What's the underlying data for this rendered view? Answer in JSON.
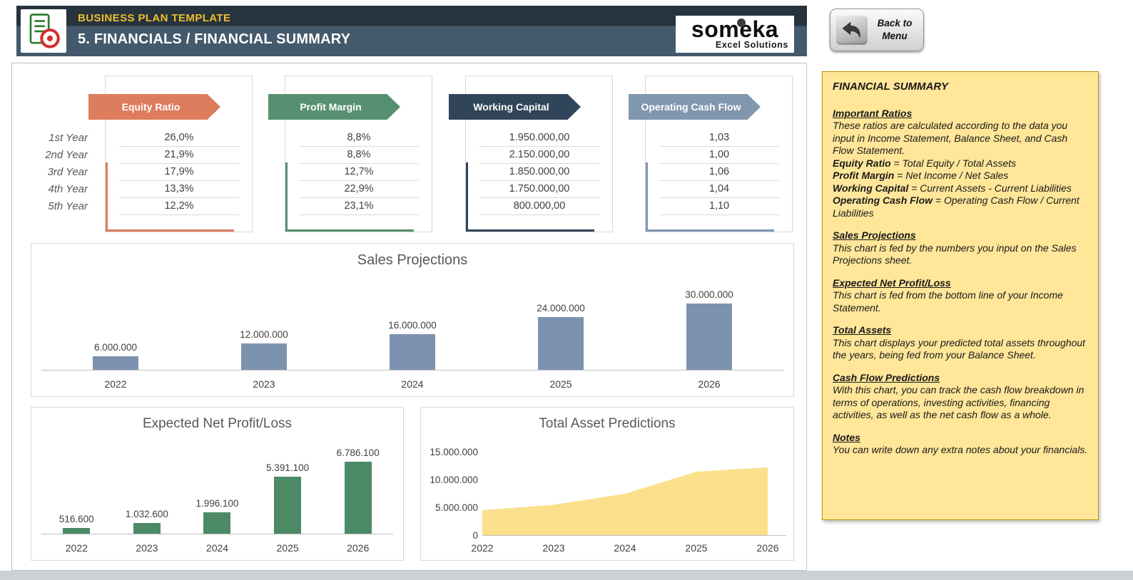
{
  "header": {
    "template_title": "BUSINESS PLAN TEMPLATE",
    "page_title": "5. FINANCIALS / FINANCIAL SUMMARY",
    "logo_text": "someka",
    "logo_subtext": "Excel Solutions",
    "back_button": {
      "line1": "Back to",
      "line2": "Menu"
    },
    "colors": {
      "band_top": "#27333D",
      "band_bottom": "#44596B",
      "accent_gold": "#EFBE2E"
    }
  },
  "kpi": {
    "row_labels": [
      "1st Year",
      "2nd Year",
      "3rd Year",
      "4th Year",
      "5th Year"
    ],
    "cards": [
      {
        "title": "Equity Ratio",
        "color": "#DD7D5E",
        "values": [
          "26,0%",
          "21,9%",
          "17,9%",
          "13,3%",
          "12,2%"
        ]
      },
      {
        "title": "Profit Margin",
        "color": "#579070",
        "values": [
          "8,8%",
          "8,8%",
          "12,7%",
          "22,9%",
          "23,1%"
        ]
      },
      {
        "title": "Working Capital",
        "color": "#31455A",
        "values": [
          "1.950.000,00",
          "2.150.000,00",
          "1.850.000,00",
          "1.750.000,00",
          "800.000,00"
        ]
      },
      {
        "title": "Operating Cash Flow",
        "color": "#8097AE",
        "values": [
          "1,03",
          "1,00",
          "1,06",
          "1,04",
          "1,10"
        ]
      }
    ]
  },
  "chart_data": [
    {
      "type": "bar",
      "title": "Sales Projections",
      "categories": [
        "2022",
        "2023",
        "2024",
        "2025",
        "2026"
      ],
      "values": [
        6000000,
        12000000,
        16000000,
        24000000,
        30000000
      ],
      "value_labels": [
        "6.000.000",
        "12.000.000",
        "16.000.000",
        "24.000.000",
        "30.000.000"
      ],
      "bar_color": "#7C93B0",
      "ylim": [
        0,
        30000000
      ],
      "grid": false,
      "legend": "none"
    },
    {
      "type": "bar",
      "title": "Expected Net Profit/Loss",
      "categories": [
        "2022",
        "2023",
        "2024",
        "2025",
        "2026"
      ],
      "values": [
        516600,
        1032600,
        1996100,
        5391100,
        6786100
      ],
      "value_labels": [
        "516.600",
        "1.032.600",
        "1.996.100",
        "5.391.100",
        "6.786.100"
      ],
      "bar_color": "#4C8A66",
      "ylim": [
        0,
        6786100
      ],
      "grid": false,
      "legend": "none"
    },
    {
      "type": "area",
      "title": "Total Asset Predictions",
      "categories": [
        "2022",
        "2023",
        "2024",
        "2025",
        "2026"
      ],
      "values": [
        4500000,
        5500000,
        7500000,
        11500000,
        12300000
      ],
      "area_color": "#FBE08C",
      "ylim": [
        0,
        15000000
      ],
      "yticks": [
        "15.000.000",
        "10.000.000",
        "5.000.000",
        "0"
      ],
      "ytick_values": [
        15000000,
        10000000,
        5000000,
        0
      ],
      "grid": false,
      "legend": "none"
    }
  ],
  "sidebar": {
    "title": "FINANCIAL SUMMARY",
    "ratios": {
      "header": "Important Ratios",
      "body": "These ratios are calculated according to the data you input in Income Statement, Balance Sheet, and Cash Flow Statement.",
      "formulas": [
        {
          "term": "Equity Ratio",
          "rest": " = Total Equity / Total Assets"
        },
        {
          "term": "Profit Margin",
          "rest": " = Net Income / Net Sales"
        },
        {
          "term": "Working Capital",
          "rest": " = Current Assets - Current Liabilities"
        },
        {
          "term": "Operating Cash Flow",
          "rest": " = Operating Cash Flow / Current Liabilities"
        }
      ]
    },
    "sections": [
      {
        "header": "Sales Projections",
        "body": "This chart is fed by the numbers you input on the Sales Projections sheet."
      },
      {
        "header": "Expected Net Profit/Loss",
        "body": "This chart is fed from the bottom line of your Income Statement."
      },
      {
        "header": "Total Assets",
        "body": "This chart displays your predicted total assets throughout the years, being fed from your Balance Sheet."
      },
      {
        "header": "Cash Flow Predictions",
        "body": "With this chart, you can track the cash flow breakdown in terms of operations, investing activities, financing activities, as well as the net cash flow as a whole."
      },
      {
        "header": "Notes",
        "body": "You can write down any extra notes about your financials."
      }
    ]
  }
}
